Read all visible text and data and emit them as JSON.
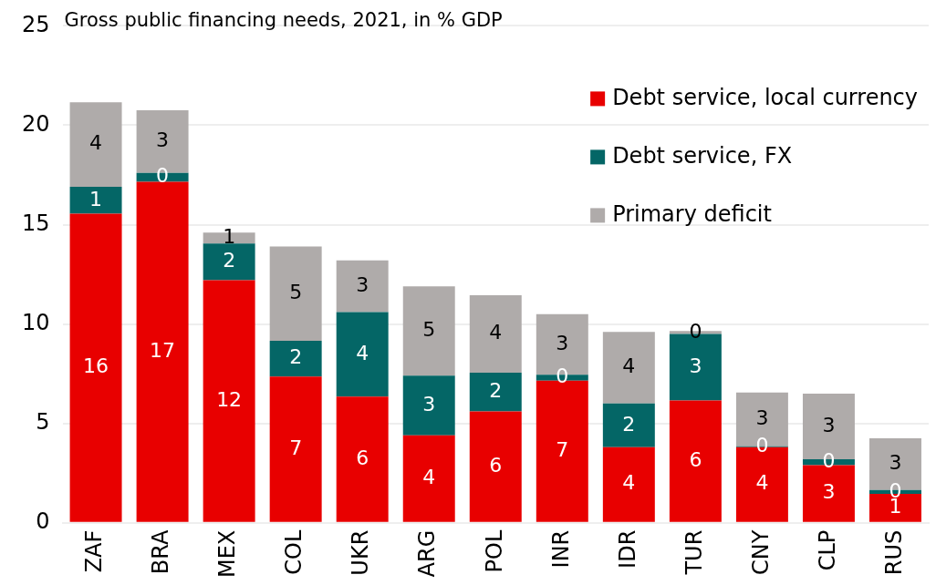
{
  "chart_data": {
    "type": "bar",
    "title": "Gross public financing needs, 2021, in % GDP",
    "stacked": true,
    "categories": [
      "ZAF",
      "BRA",
      "MEX",
      "COL",
      "UKR",
      "ARG",
      "POL",
      "INR",
      "IDR",
      "TUR",
      "CNY",
      "CLP",
      "RUS"
    ],
    "series": [
      {
        "name": "Debt service, local currency",
        "color": "#e80000",
        "values": [
          15.55,
          17.15,
          12.2,
          7.35,
          6.35,
          4.4,
          5.6,
          7.15,
          3.8,
          6.15,
          3.8,
          2.9,
          1.45
        ],
        "value_labels": [
          "16",
          "17",
          "12",
          "7",
          "6",
          "4",
          "6",
          "7",
          "4",
          "6",
          "4",
          "3",
          "1"
        ]
      },
      {
        "name": "Debt service, FX",
        "color": "#046666",
        "values": [
          1.35,
          0.45,
          1.85,
          1.8,
          4.25,
          3.0,
          1.95,
          0.3,
          2.2,
          3.35,
          0.05,
          0.3,
          0.2
        ],
        "value_labels": [
          "1",
          "0",
          "2",
          "2",
          "4",
          "3",
          "2",
          "0",
          "2",
          "3",
          "0",
          "0",
          "0"
        ]
      },
      {
        "name": "Primary deficit",
        "color": "#afabaa",
        "values": [
          4.25,
          3.15,
          0.55,
          4.75,
          2.6,
          4.5,
          3.9,
          3.05,
          3.6,
          0.15,
          2.7,
          3.3,
          2.6
        ],
        "value_labels": [
          "4",
          "3",
          "1",
          "5",
          "3",
          "5",
          "4",
          "3",
          "4",
          "0",
          "3",
          "3",
          "3"
        ]
      }
    ],
    "ylim": [
      0,
      25
    ],
    "yticks": [
      0,
      5,
      10,
      15,
      20,
      25
    ],
    "grid": "y",
    "legend": "top right"
  }
}
